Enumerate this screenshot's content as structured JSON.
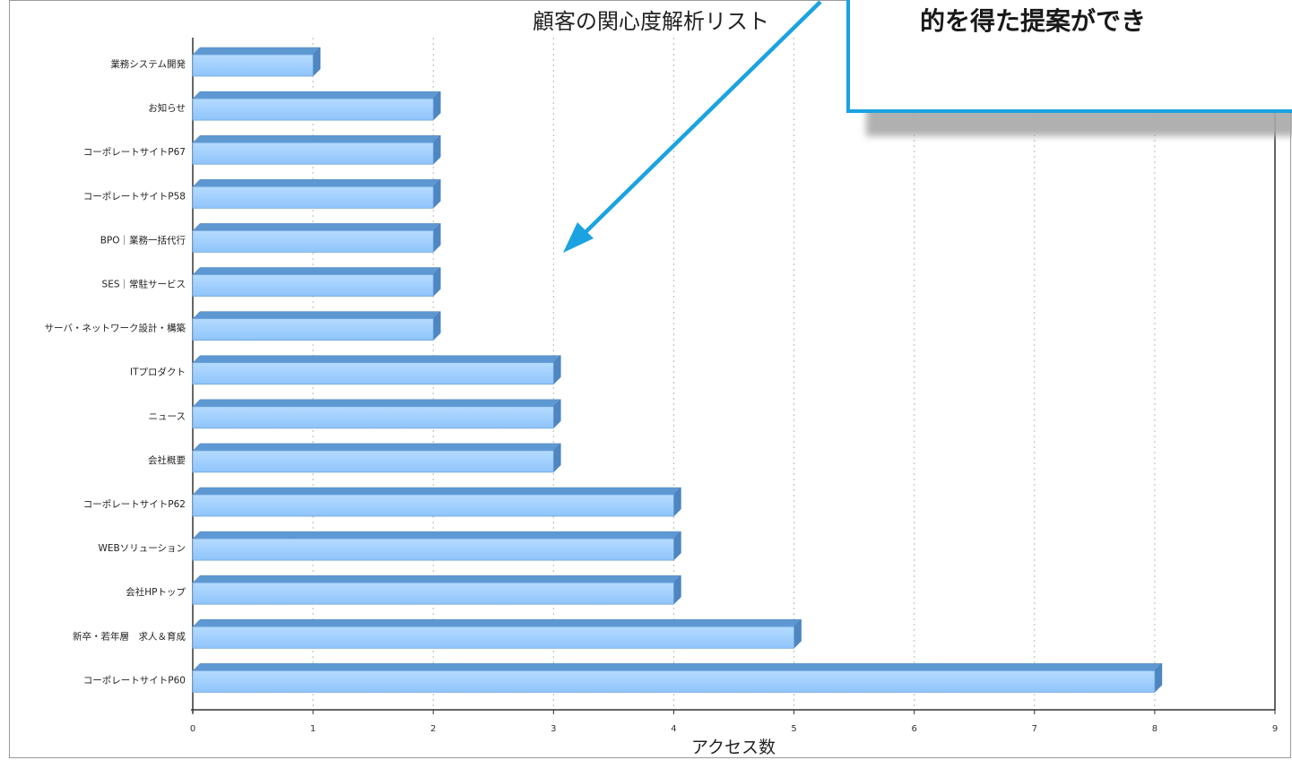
{
  "callout": {
    "text": "的を得た提案ができ",
    "border_color": "#1aa3e0",
    "arrow_color": "#1aa3e0"
  },
  "chart_data": {
    "type": "bar",
    "orientation": "horizontal",
    "title": "顧客の関心度解析リスト",
    "xlabel": "アクセス数",
    "ylabel": "",
    "xlim": [
      0,
      9
    ],
    "xticks": [
      0,
      1,
      2,
      3,
      4,
      5,
      6,
      7,
      8,
      9
    ],
    "grid": true,
    "bar_color": "#99ccff",
    "categories": [
      "業務システム開発",
      "お知らせ",
      "コーポレートサイトP67",
      "コーポレートサイトP58",
      "BPO｜業務一括代行",
      "SES｜常駐サービス",
      "サーバ・ネットワーク設計・構築",
      "ITプロダクト",
      "ニュース",
      "会社概要",
      "コーポレートサイトP62",
      "WEBソリューション",
      "会社HPトップ",
      "新卒・若年層　求人＆育成",
      "コーポレートサイトP60"
    ],
    "values": [
      1,
      2,
      2,
      2,
      2,
      2,
      2,
      3,
      3,
      3,
      4,
      4,
      4,
      5,
      8
    ]
  }
}
